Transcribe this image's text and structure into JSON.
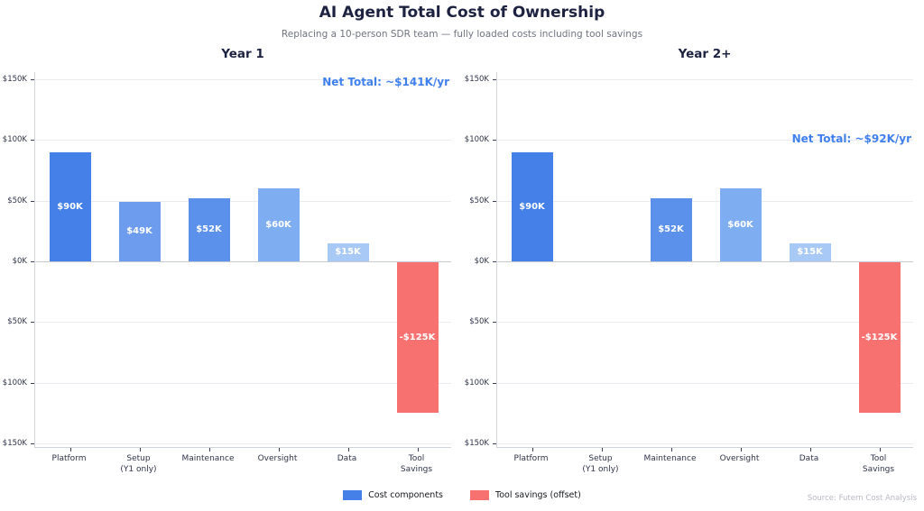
{
  "main": {
    "title": "AI Agent Total Cost of Ownership",
    "subtitle": "Replacing a 10-person SDR team — fully loaded costs including tool savings",
    "source": "Source: Futern Cost Analysis"
  },
  "legend": {
    "items": [
      {
        "label": "Cost components",
        "color": "#4480e8"
      },
      {
        "label": "Tool savings (offset)",
        "color": "#f87171"
      }
    ],
    "position": "bottom-center"
  },
  "colors": {
    "title": "#1c2240",
    "subtitle_gray": "#6f7480",
    "annotation_blue": "#4080ee",
    "gridline": "#e9ebf0",
    "zero_line": "#c6cad2",
    "bar_label_text": "#ffffff"
  },
  "chart_data": [
    {
      "type": "bar",
      "title": "Year 1",
      "annotation": "Net Total: ~$141K/yr",
      "annotation_value_y": 148,
      "categories": [
        "Platform",
        "Setup\n(Y1 only)",
        "Maintenance",
        "Oversight",
        "Data",
        "Tool\nSavings"
      ],
      "values": [
        90,
        49,
        52,
        60,
        15,
        -125
      ],
      "labels": [
        "$90K",
        "$49K",
        "$52K",
        "$60K",
        "$15K",
        "-$125K"
      ],
      "bar_colors": [
        "#4480e8",
        "#6d9cef",
        "#5b91ea",
        "#7fadf1",
        "#a8c8f5",
        "#f87171"
      ],
      "unit": "USD thousands per year",
      "xlabel": "",
      "ylabel": "",
      "ylim": [
        -150,
        150
      ],
      "grid": true,
      "yticks": [
        150,
        100,
        50,
        0,
        -50,
        -100,
        -150
      ],
      "ytick_labels": [
        "$150K",
        "$100K",
        "$50K",
        "$0K",
        "$50K",
        "$100K",
        "$150K"
      ]
    },
    {
      "type": "bar",
      "title": "Year 2+",
      "annotation": "Net Total: ~$92K/yr",
      "annotation_value_y": 101,
      "categories": [
        "Platform",
        "Setup\n(Y1 only)",
        "Maintenance",
        "Oversight",
        "Data",
        "Tool\nSavings"
      ],
      "values": [
        90,
        null,
        52,
        60,
        15,
        -125
      ],
      "labels": [
        "$90K",
        null,
        "$52K",
        "$60K",
        "$15K",
        "-$125K"
      ],
      "bar_colors": [
        "#4480e8",
        null,
        "#5b91ea",
        "#7fadf1",
        "#a8c8f5",
        "#f87171"
      ],
      "unit": "USD thousands per year",
      "xlabel": "",
      "ylabel": "",
      "ylim": [
        -150,
        150
      ],
      "grid": true,
      "yticks": [
        150,
        100,
        50,
        0,
        -50,
        -100,
        -150
      ],
      "ytick_labels": [
        "$150K",
        "$100K",
        "$50K",
        "$0K",
        "$50K",
        "$100K",
        "$150K"
      ]
    }
  ]
}
